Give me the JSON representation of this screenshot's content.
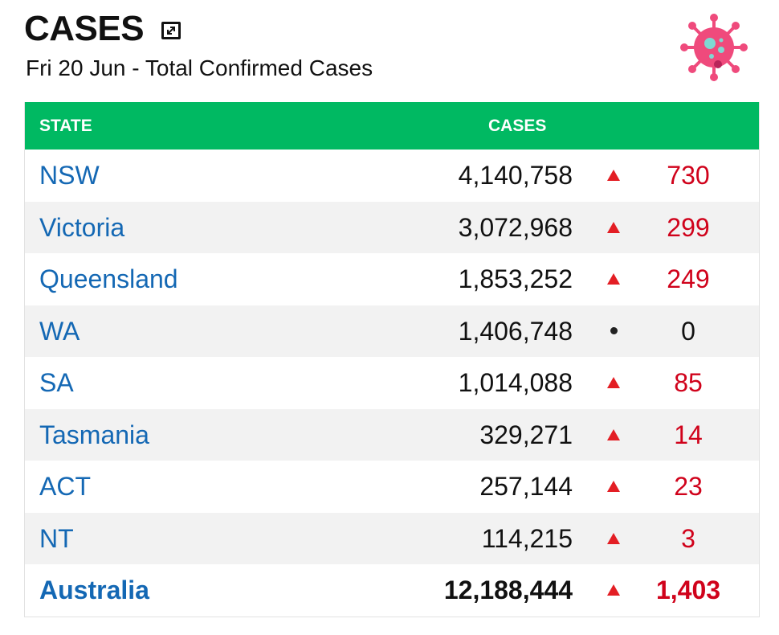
{
  "header": {
    "title": "CASES",
    "subtitle": "Fri 20 Jun - Total Confirmed Cases"
  },
  "table": {
    "columns": {
      "state": "STATE",
      "cases": "CASES"
    },
    "rows": [
      {
        "state": "NSW",
        "total": "4,140,758",
        "trend": "up",
        "change": "730"
      },
      {
        "state": "Victoria",
        "total": "3,072,968",
        "trend": "up",
        "change": "299"
      },
      {
        "state": "Queensland",
        "total": "1,853,252",
        "trend": "up",
        "change": "249"
      },
      {
        "state": "WA",
        "total": "1,406,748",
        "trend": "none",
        "change": "0"
      },
      {
        "state": "SA",
        "total": "1,014,088",
        "trend": "up",
        "change": "85"
      },
      {
        "state": "Tasmania",
        "total": "329,271",
        "trend": "up",
        "change": "14"
      },
      {
        "state": "ACT",
        "total": "257,144",
        "trend": "up",
        "change": "23"
      },
      {
        "state": "NT",
        "total": "114,215",
        "trend": "up",
        "change": "3"
      }
    ],
    "total_row": {
      "state": "Australia",
      "total": "12,188,444",
      "trend": "up",
      "change": "1,403"
    }
  },
  "icons": {
    "expand": "expand-icon",
    "virus": "virus-icon",
    "up": "triangle-up-icon",
    "none": "dot-icon"
  },
  "colors": {
    "header_bg": "#00b962",
    "state_link": "#1468b4",
    "increase": "#d0021b",
    "triangle": "#e31e24",
    "virus": "#ef4a7c"
  }
}
